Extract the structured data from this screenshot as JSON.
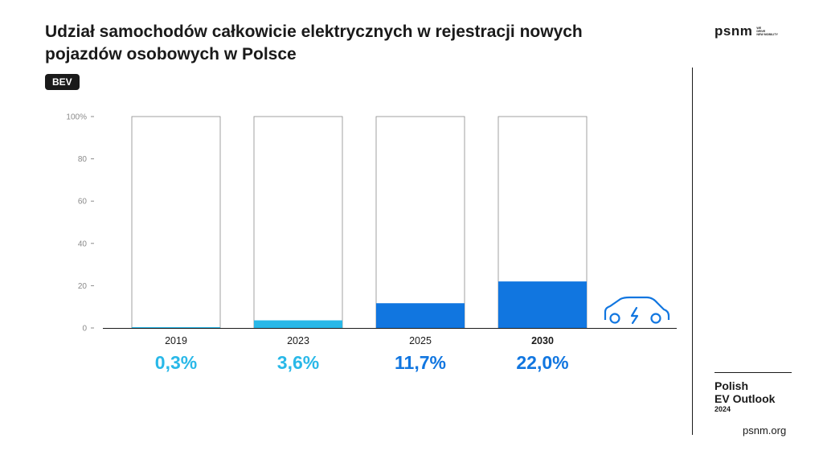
{
  "header": {
    "title": "Udział samochodów całkowicie elektrycznych w rejestracji nowych pojazdów osobowych w Polsce",
    "tag": "BEV"
  },
  "brand": {
    "logo_word": "psnm",
    "logo_slogan": [
      "WE",
      "DRIVE",
      "NEW MOBILITY"
    ],
    "outlook_line1": "Polish",
    "outlook_line2": "EV Outlook",
    "outlook_year": "2024",
    "site": "psnm.org"
  },
  "colors": {
    "light_blue": "#29b8e8",
    "blue": "#1176e0",
    "text": "#1a1a1a",
    "axis_text": "#8a8a8a"
  },
  "icons": [
    "electric-car-icon"
  ],
  "chart_data": {
    "type": "bar",
    "categories": [
      "2019",
      "2023",
      "2025",
      "2030"
    ],
    "values": [
      0.3,
      3.6,
      11.7,
      22.0
    ],
    "value_labels": [
      "0,3%",
      "3,6%",
      "11,7%",
      "22,0%"
    ],
    "bar_colors": [
      "#29b8e8",
      "#29b8e8",
      "#1176e0",
      "#1176e0"
    ],
    "bold_categories": [
      "2030"
    ],
    "y_ticks": [
      "0",
      "20",
      "40",
      "60",
      "80",
      "100%"
    ],
    "ylim": [
      0,
      100
    ],
    "background_bar_value": 100,
    "grid": false
  }
}
